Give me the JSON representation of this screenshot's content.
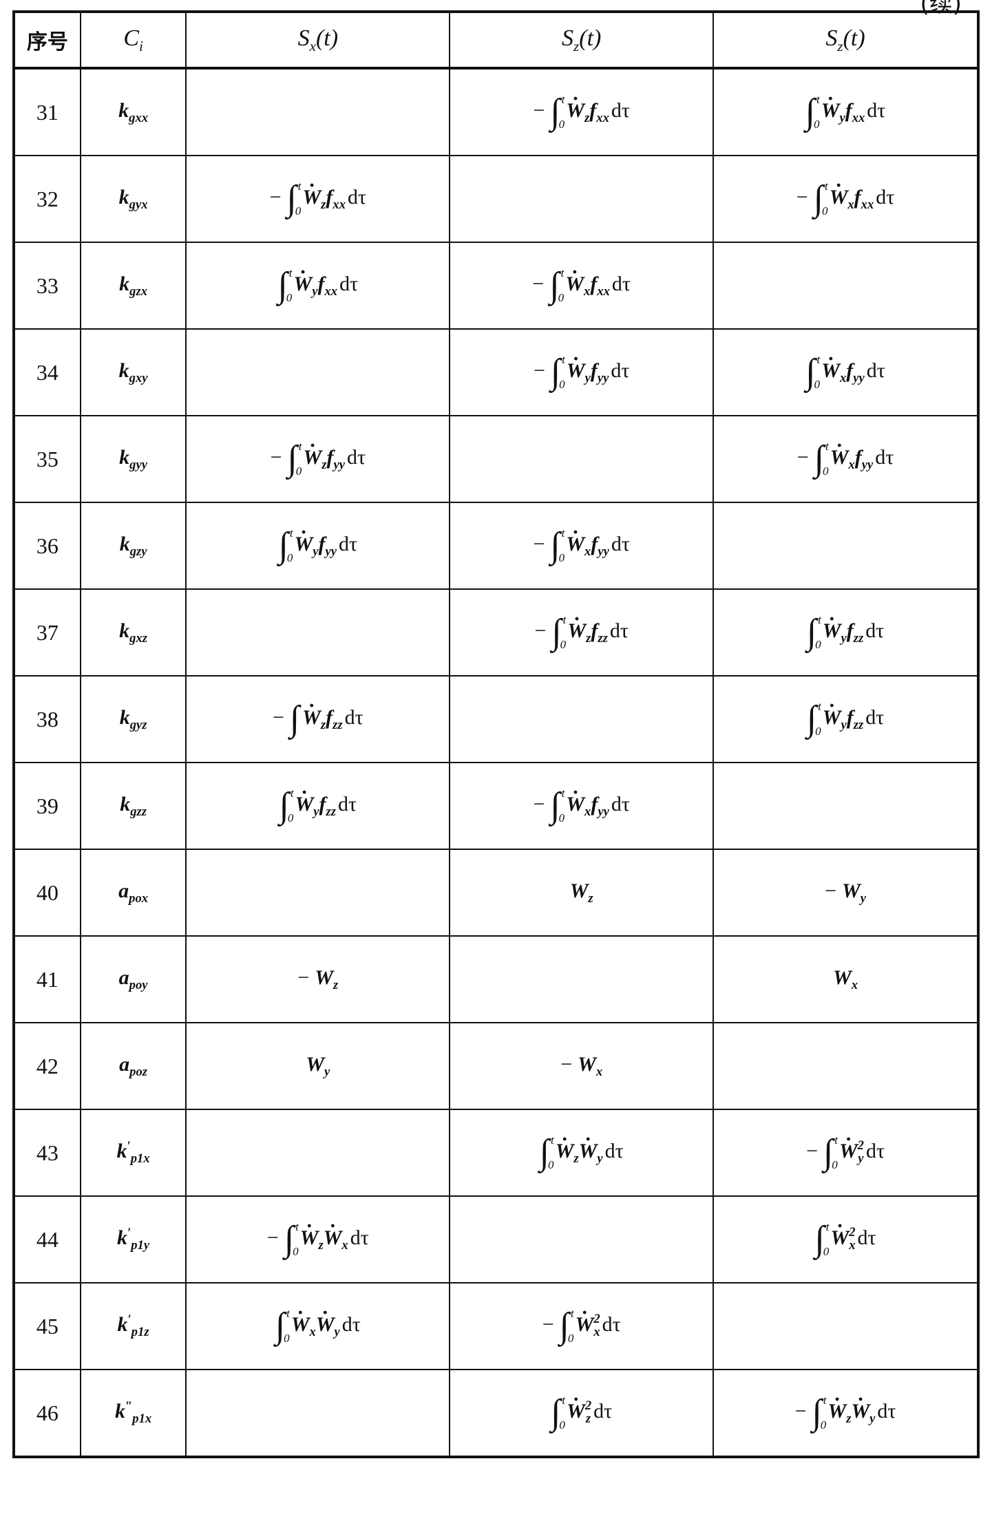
{
  "continued_mark": "(续)",
  "headers": {
    "no": "序号",
    "ci": {
      "base": "C",
      "sub": "i"
    },
    "cols": [
      {
        "base": "S",
        "sub": "x",
        "arg": "(t)"
      },
      {
        "base": "S",
        "sub": "z",
        "arg": "(t)"
      },
      {
        "base": "S",
        "sub": "z",
        "arg": "(t)"
      }
    ]
  },
  "rows": [
    {
      "no": "31",
      "ci": {
        "base": "k",
        "prime": "",
        "sub": "gxx"
      },
      "cells": [
        null,
        {
          "sign": "−",
          "int": {
            "lower": "0",
            "upper": "t"
          },
          "f": [
            {
              "b": "W",
              "dot": true,
              "sub": "z"
            },
            {
              "b": "f",
              "sub": "xx"
            }
          ],
          "d": "dτ"
        },
        {
          "sign": "",
          "int": {
            "lower": "0",
            "upper": "t"
          },
          "f": [
            {
              "b": "W",
              "dot": true,
              "sub": "y"
            },
            {
              "b": "f",
              "sub": "xx"
            }
          ],
          "d": "dτ"
        }
      ]
    },
    {
      "no": "32",
      "ci": {
        "base": "k",
        "prime": "",
        "sub": "gyx"
      },
      "cells": [
        {
          "sign": "−",
          "int": {
            "lower": "0",
            "upper": "t"
          },
          "f": [
            {
              "b": "W",
              "dot": true,
              "sub": "z"
            },
            {
              "b": "f",
              "sub": "xx"
            }
          ],
          "d": "dτ"
        },
        null,
        {
          "sign": "−",
          "int": {
            "lower": "0",
            "upper": "t"
          },
          "f": [
            {
              "b": "W",
              "dot": true,
              "sub": "x"
            },
            {
              "b": "f",
              "sub": "xx"
            }
          ],
          "d": "dτ"
        }
      ]
    },
    {
      "no": "33",
      "ci": {
        "base": "k",
        "prime": "",
        "sub": "gzx"
      },
      "cells": [
        {
          "sign": "",
          "int": {
            "lower": "0",
            "upper": "t"
          },
          "f": [
            {
              "b": "W",
              "dot": true,
              "sub": "y"
            },
            {
              "b": "f",
              "sub": "xx"
            }
          ],
          "d": "dτ"
        },
        {
          "sign": "−",
          "int": {
            "lower": "0",
            "upper": "t"
          },
          "f": [
            {
              "b": "W",
              "dot": true,
              "sub": "x"
            },
            {
              "b": "f",
              "sub": "xx"
            }
          ],
          "d": "dτ"
        },
        null
      ]
    },
    {
      "no": "34",
      "ci": {
        "base": "k",
        "prime": "",
        "sub": "gxy"
      },
      "cells": [
        null,
        {
          "sign": "−",
          "int": {
            "lower": "0",
            "upper": "t"
          },
          "f": [
            {
              "b": "W",
              "dot": true,
              "sub": "y"
            },
            {
              "b": "f",
              "sub": "yy"
            }
          ],
          "d": "dτ"
        },
        {
          "sign": "",
          "int": {
            "lower": "0",
            "upper": "t"
          },
          "f": [
            {
              "b": "W",
              "dot": true,
              "sub": "x"
            },
            {
              "b": "f",
              "sub": "yy"
            }
          ],
          "d": "dτ"
        }
      ]
    },
    {
      "no": "35",
      "ci": {
        "base": "k",
        "prime": "",
        "sub": "gyy"
      },
      "cells": [
        {
          "sign": "−",
          "int": {
            "lower": "0",
            "upper": "t"
          },
          "f": [
            {
              "b": "W",
              "dot": true,
              "sub": "z"
            },
            {
              "b": "f",
              "sub": "yy"
            }
          ],
          "d": "dτ"
        },
        null,
        {
          "sign": "−",
          "int": {
            "lower": "0",
            "upper": "t"
          },
          "f": [
            {
              "b": "W",
              "dot": true,
              "sub": "x"
            },
            {
              "b": "f",
              "sub": "yy"
            }
          ],
          "d": "dτ"
        }
      ]
    },
    {
      "no": "36",
      "ci": {
        "base": "k",
        "prime": "",
        "sub": "gzy"
      },
      "cells": [
        {
          "sign": "",
          "int": {
            "lower": "0",
            "upper": "t"
          },
          "f": [
            {
              "b": "W",
              "dot": true,
              "sub": "y"
            },
            {
              "b": "f",
              "sub": "yy"
            }
          ],
          "d": "dτ"
        },
        {
          "sign": "−",
          "int": {
            "lower": "0",
            "upper": "t"
          },
          "f": [
            {
              "b": "W",
              "dot": true,
              "sub": "x"
            },
            {
              "b": "f",
              "sub": "yy"
            }
          ],
          "d": "dτ"
        },
        null
      ]
    },
    {
      "no": "37",
      "ci": {
        "base": "k",
        "prime": "",
        "sub": "gxz"
      },
      "cells": [
        null,
        {
          "sign": "−",
          "int": {
            "lower": "0",
            "upper": "t"
          },
          "f": [
            {
              "b": "W",
              "dot": true,
              "sub": "z"
            },
            {
              "b": "f",
              "sub": "zz"
            }
          ],
          "d": "dτ"
        },
        {
          "sign": "",
          "int": {
            "lower": "0",
            "upper": "t"
          },
          "f": [
            {
              "b": "W",
              "dot": true,
              "sub": "y"
            },
            {
              "b": "f",
              "sub": "zz"
            }
          ],
          "d": "dτ"
        }
      ]
    },
    {
      "no": "38",
      "ci": {
        "base": "k",
        "prime": "",
        "sub": "gyz"
      },
      "cells": [
        {
          "sign": "−",
          "int": {
            "lower": "",
            "upper": ""
          },
          "f": [
            {
              "b": "W",
              "dot": true,
              "sub": "z"
            },
            {
              "b": "f",
              "sub": "zz"
            }
          ],
          "d": "dτ"
        },
        null,
        {
          "sign": "",
          "int": {
            "lower": "0",
            "upper": "t"
          },
          "f": [
            {
              "b": "W",
              "dot": true,
              "sub": "y"
            },
            {
              "b": "f",
              "sub": "zz"
            }
          ],
          "d": "dτ"
        }
      ]
    },
    {
      "no": "39",
      "ci": {
        "base": "k",
        "prime": "",
        "sub": "gzz"
      },
      "cells": [
        {
          "sign": "",
          "int": {
            "lower": "0",
            "upper": "t"
          },
          "f": [
            {
              "b": "W",
              "dot": true,
              "sub": "y"
            },
            {
              "b": "f",
              "sub": "zz"
            }
          ],
          "d": "dτ"
        },
        {
          "sign": "−",
          "int": {
            "lower": "0",
            "upper": "t"
          },
          "f": [
            {
              "b": "W",
              "dot": true,
              "sub": "x"
            },
            {
              "b": "f",
              "sub": "yy"
            }
          ],
          "d": "dτ"
        },
        null
      ]
    },
    {
      "no": "40",
      "ci": {
        "base": "a",
        "prime": "",
        "sub": "pox"
      },
      "cells": [
        null,
        {
          "sign": "",
          "f": [
            {
              "b": "W",
              "sub": "z"
            }
          ]
        },
        {
          "sign": "−",
          "f": [
            {
              "b": "W",
              "sub": "y"
            }
          ]
        }
      ]
    },
    {
      "no": "41",
      "ci": {
        "base": "a",
        "prime": "",
        "sub": "poy"
      },
      "cells": [
        {
          "sign": "−",
          "f": [
            {
              "b": "W",
              "sub": "z"
            }
          ]
        },
        null,
        {
          "sign": "",
          "f": [
            {
              "b": "W",
              "sub": "x"
            }
          ]
        }
      ]
    },
    {
      "no": "42",
      "ci": {
        "base": "a",
        "prime": "",
        "sub": "poz"
      },
      "cells": [
        {
          "sign": "",
          "f": [
            {
              "b": "W",
              "sub": "y"
            }
          ]
        },
        {
          "sign": "−",
          "f": [
            {
              "b": "W",
              "sub": "x"
            }
          ]
        },
        null
      ]
    },
    {
      "no": "43",
      "ci": {
        "base": "k",
        "prime": "′",
        "sub": "p1x"
      },
      "cells": [
        null,
        {
          "sign": "",
          "int": {
            "lower": "0",
            "upper": "t"
          },
          "f": [
            {
              "b": "W",
              "dot": true,
              "sub": "z"
            },
            {
              "b": "W",
              "dot": true,
              "sub": "y"
            }
          ],
          "d": "dτ"
        },
        {
          "sign": "−",
          "int": {
            "lower": "0",
            "upper": "t"
          },
          "f": [
            {
              "b": "W",
              "dot": true,
              "sub": "y",
              "sup": "2"
            }
          ],
          "d": "dτ"
        }
      ]
    },
    {
      "no": "44",
      "ci": {
        "base": "k",
        "prime": "′",
        "sub": "p1y"
      },
      "cells": [
        {
          "sign": "−",
          "int": {
            "lower": "0",
            "upper": "t"
          },
          "f": [
            {
              "b": "W",
              "dot": true,
              "sub": "z"
            },
            {
              "b": "W",
              "dot": true,
              "sub": "x"
            }
          ],
          "d": "dτ"
        },
        null,
        {
          "sign": "",
          "int": {
            "lower": "0",
            "upper": "t"
          },
          "f": [
            {
              "b": "W",
              "dot": true,
              "sub": "x",
              "sup": "2"
            }
          ],
          "d": "dτ"
        }
      ]
    },
    {
      "no": "45",
      "ci": {
        "base": "k",
        "prime": "′",
        "sub": "p1z"
      },
      "cells": [
        {
          "sign": "",
          "int": {
            "lower": "0",
            "upper": "t"
          },
          "f": [
            {
              "b": "W",
              "dot": true,
              "sub": "x"
            },
            {
              "b": "W",
              "dot": true,
              "sub": "y"
            }
          ],
          "d": "dτ"
        },
        {
          "sign": "−",
          "int": {
            "lower": "0",
            "upper": "t"
          },
          "f": [
            {
              "b": "W",
              "dot": true,
              "sub": "x",
              "sup": "2"
            }
          ],
          "d": "dτ"
        },
        null
      ]
    },
    {
      "no": "46",
      "ci": {
        "base": "k",
        "prime": "″",
        "sub": "p1x"
      },
      "cells": [
        null,
        {
          "sign": "",
          "int": {
            "lower": "0",
            "upper": "t"
          },
          "f": [
            {
              "b": "W",
              "dot": true,
              "sub": "z",
              "sup": "2"
            }
          ],
          "d": "dτ"
        },
        {
          "sign": "−",
          "int": {
            "lower": "0",
            "upper": "t"
          },
          "f": [
            {
              "b": "W",
              "dot": true,
              "sub": "z"
            },
            {
              "b": "W",
              "dot": true,
              "sub": "y"
            }
          ],
          "d": "dτ"
        }
      ]
    }
  ]
}
